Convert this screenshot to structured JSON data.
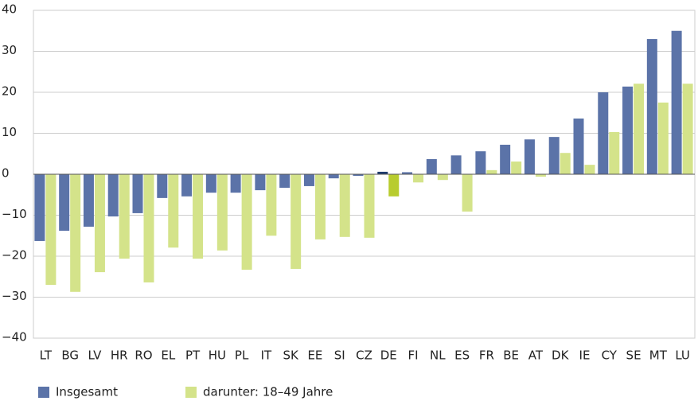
{
  "chart_data": {
    "type": "bar",
    "categories": [
      "LT",
      "BG",
      "LV",
      "HR",
      "RO",
      "EL",
      "PT",
      "HU",
      "PL",
      "IT",
      "SK",
      "EE",
      "SI",
      "CZ",
      "DE",
      "FI",
      "NL",
      "ES",
      "FR",
      "BE",
      "AT",
      "DK",
      "IE",
      "CY",
      "SE",
      "MT",
      "LU"
    ],
    "series": [
      {
        "name": "Insgesamt",
        "color": "#5b73a8",
        "highlight_color": "#1c3a6e",
        "values": [
          -16.3,
          -13.8,
          -12.8,
          -10.3,
          -9.5,
          -5.8,
          -5.4,
          -4.5,
          -4.5,
          -3.9,
          -3.3,
          -2.9,
          -1,
          -0.4,
          0.6,
          0.5,
          3.7,
          4.6,
          5.6,
          7.2,
          8.5,
          9.1,
          13.6,
          20,
          21.4,
          33,
          35
        ]
      },
      {
        "name": "darunter: 18–49 Jahre",
        "color": "#d4e38a",
        "highlight_color": "#b8cc2e",
        "values": [
          -27,
          -28.7,
          -23.9,
          -20.6,
          -26.4,
          -17.9,
          -20.6,
          -18.6,
          -23.3,
          -15,
          -23.1,
          -15.9,
          -15.3,
          -15.5,
          -5.4,
          -2,
          -1.4,
          -9.1,
          1,
          3.1,
          -0.6,
          5.2,
          2.3,
          10.3,
          22.1,
          17.5,
          22.1
        ]
      }
    ],
    "highlight_category": "DE",
    "ylim": [
      -40,
      40
    ],
    "yticks": [
      {
        "value": -40,
        "label": "−40"
      },
      {
        "value": -30,
        "label": "−30"
      },
      {
        "value": -20,
        "label": "−20"
      },
      {
        "value": -10,
        "label": "−10"
      },
      0,
      10,
      20,
      30,
      40
    ],
    "grid": true
  }
}
